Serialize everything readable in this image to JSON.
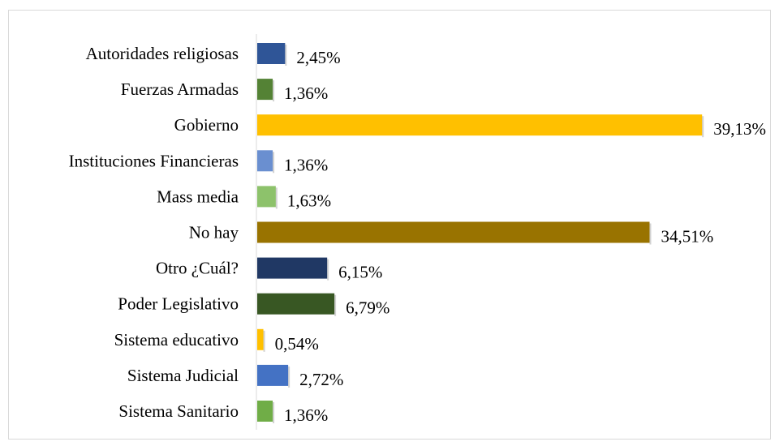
{
  "chart_data": {
    "type": "bar",
    "orientation": "horizontal",
    "categories": [
      "Autoridades religiosas",
      "Fuerzas Armadas",
      "Gobierno",
      "Instituciones Financieras",
      "Mass media",
      "No hay",
      "Otro ¿Cuál?",
      "Poder Legislativo",
      "Sistema educativo",
      "Sistema Judicial",
      "Sistema Sanitario"
    ],
    "values": [
      2.45,
      1.36,
      39.13,
      1.36,
      1.63,
      34.51,
      6.15,
      6.79,
      0.54,
      2.72,
      1.36
    ],
    "value_labels": [
      "2,45%",
      "1,36%",
      "39,13%",
      "1,36%",
      "1,63%",
      "34,51%",
      "6,15%",
      "6,79%",
      "0,54%",
      "2,72%",
      "1,36%"
    ],
    "colors": [
      "#2f5597",
      "#548235",
      "#ffc000",
      "#6a8fd0",
      "#8dc26b",
      "#997300",
      "#203864",
      "#385723",
      "#ffc000",
      "#4472c4",
      "#70ad47"
    ],
    "title": "",
    "xlabel": "",
    "ylabel": "",
    "xlim": [
      0,
      40
    ],
    "grid": false,
    "legend": "none"
  }
}
